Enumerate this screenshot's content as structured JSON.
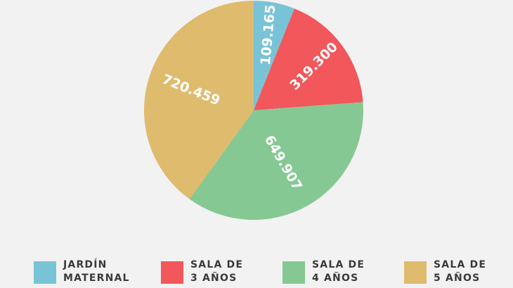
{
  "chart_data": {
    "type": "pie",
    "slices": [
      {
        "label": [
          "JARDÍN",
          "MATERNAL"
        ],
        "value": 109165,
        "display": "109.165",
        "color": "#79c3d6"
      },
      {
        "label": [
          "SALA DE",
          "3 AÑOS"
        ],
        "value": 319300,
        "display": "319.300",
        "color": "#f1575b"
      },
      {
        "label": [
          "SALA DE",
          "4 AÑOS"
        ],
        "value": 649907,
        "display": "649.907",
        "color": "#86c893"
      },
      {
        "label": [
          "SALA DE",
          "5 AÑOS"
        ],
        "value": 720459,
        "display": "720.459",
        "color": "#dfbb6e"
      }
    ],
    "start_angle_deg": 0,
    "direction": "clockwise",
    "legend_position": "bottom"
  }
}
